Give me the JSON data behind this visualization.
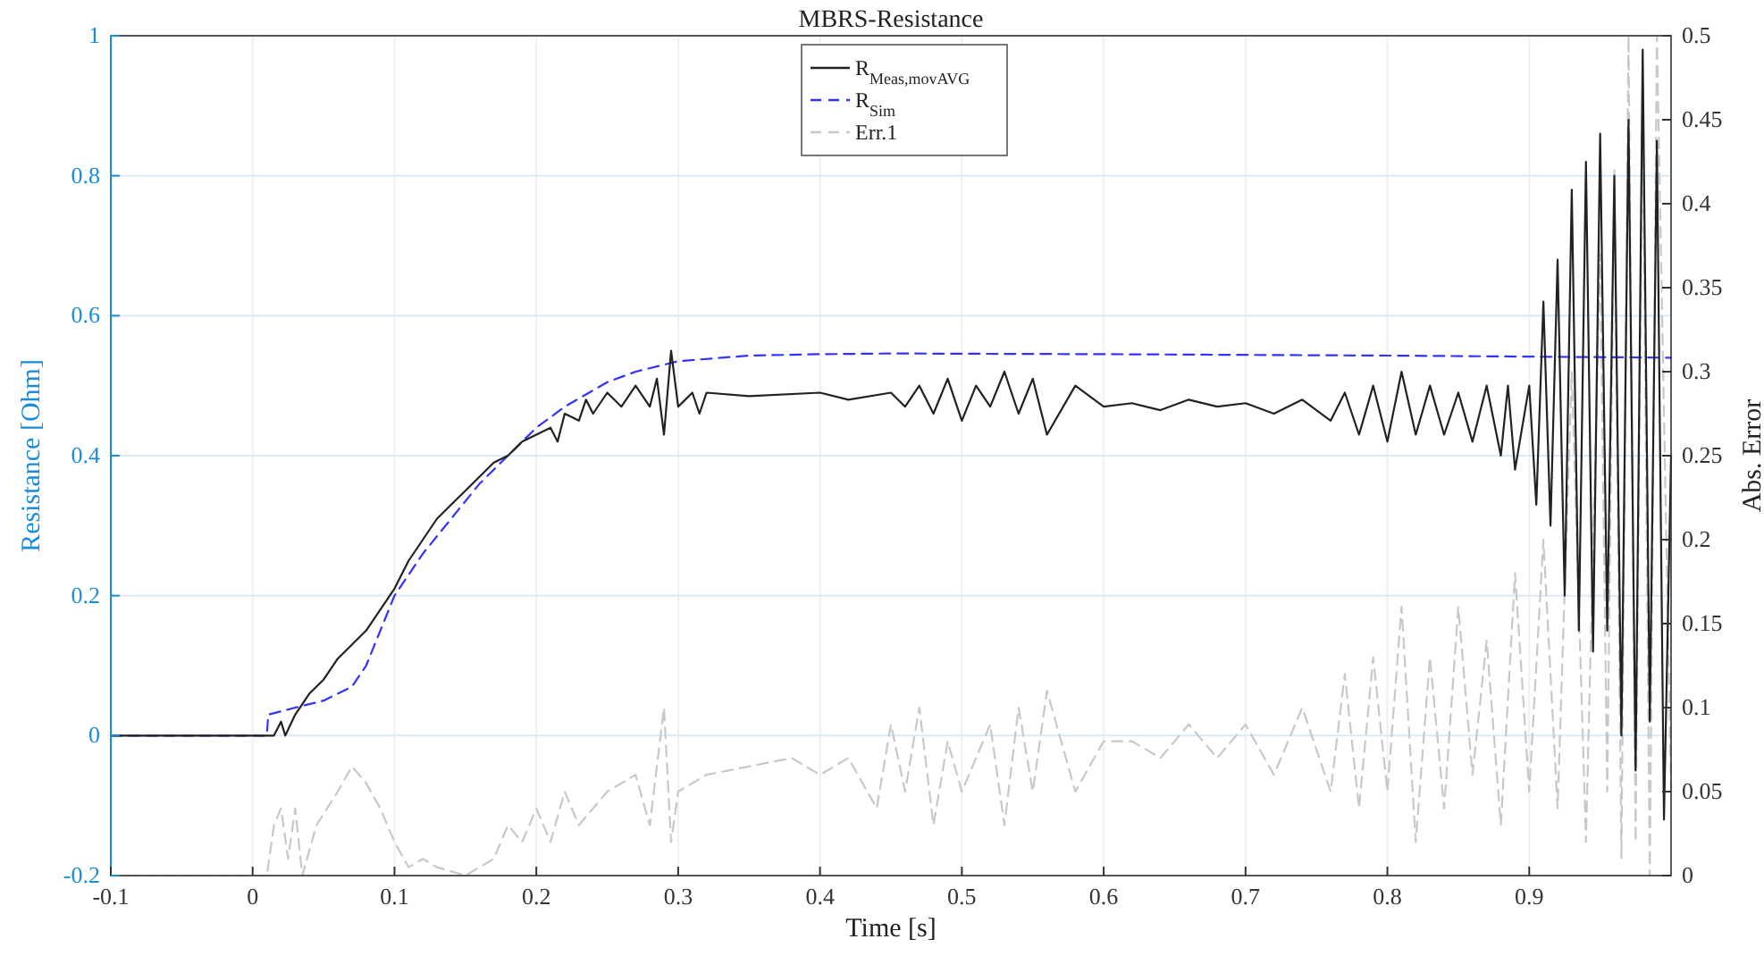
{
  "chart_data": {
    "type": "line",
    "title": "MBRS-Resistance",
    "xlabel": "Time [s]",
    "ylabel": "Resistance [Ohm]",
    "y2label": "Abs. Error",
    "xlim": [
      -0.1,
      1
    ],
    "xticks": [
      -0.1,
      0,
      0.1,
      0.2,
      0.3,
      0.4,
      0.5,
      0.6,
      0.7,
      0.8,
      0.9
    ],
    "ylim": [
      -0.2,
      1
    ],
    "yticks": [
      -0.2,
      0,
      0.2,
      0.4,
      0.6,
      0.8,
      1
    ],
    "y2lim": [
      0,
      0.5
    ],
    "y2ticks": [
      0,
      0.05,
      0.1,
      0.15,
      0.2,
      0.25,
      0.3,
      0.35,
      0.4,
      0.45,
      0.5
    ],
    "grid": true,
    "legend": "top",
    "series": [
      {
        "name": "R$_{Meas,movAVG}$",
        "color": "#222222",
        "line_style": "solid",
        "x": [
          -0.1,
          0.015,
          0.02,
          0.023,
          0.03,
          0.04,
          0.05,
          0.06,
          0.07,
          0.08,
          0.09,
          0.1,
          0.11,
          0.12,
          0.13,
          0.14,
          0.15,
          0.16,
          0.17,
          0.18,
          0.19,
          0.2,
          0.21,
          0.215,
          0.22,
          0.23,
          0.235,
          0.24,
          0.25,
          0.26,
          0.27,
          0.28,
          0.285,
          0.29,
          0.295,
          0.3,
          0.31,
          0.315,
          0.32,
          0.35,
          0.4,
          0.42,
          0.45,
          0.46,
          0.47,
          0.48,
          0.49,
          0.5,
          0.51,
          0.52,
          0.53,
          0.54,
          0.55,
          0.56,
          0.58,
          0.6,
          0.62,
          0.64,
          0.66,
          0.68,
          0.7,
          0.72,
          0.74,
          0.76,
          0.77,
          0.78,
          0.79,
          0.8,
          0.81,
          0.82,
          0.83,
          0.84,
          0.85,
          0.86,
          0.87,
          0.88,
          0.885,
          0.89,
          0.9,
          0.905,
          0.91,
          0.915,
          0.92,
          0.925,
          0.93,
          0.935,
          0.94,
          0.945,
          0.95,
          0.955,
          0.96,
          0.965,
          0.97,
          0.975,
          0.98,
          0.985,
          0.99,
          0.995,
          1
        ],
        "values": [
          0,
          0,
          0.02,
          0,
          0.03,
          0.06,
          0.08,
          0.11,
          0.13,
          0.15,
          0.18,
          0.21,
          0.25,
          0.28,
          0.31,
          0.33,
          0.35,
          0.37,
          0.39,
          0.4,
          0.42,
          0.43,
          0.44,
          0.42,
          0.46,
          0.45,
          0.48,
          0.46,
          0.49,
          0.47,
          0.5,
          0.47,
          0.51,
          0.43,
          0.55,
          0.47,
          0.49,
          0.46,
          0.49,
          0.485,
          0.49,
          0.48,
          0.49,
          0.47,
          0.5,
          0.46,
          0.51,
          0.45,
          0.5,
          0.47,
          0.52,
          0.46,
          0.51,
          0.43,
          0.5,
          0.47,
          0.475,
          0.465,
          0.48,
          0.47,
          0.475,
          0.46,
          0.48,
          0.45,
          0.49,
          0.43,
          0.5,
          0.42,
          0.52,
          0.43,
          0.5,
          0.43,
          0.49,
          0.42,
          0.5,
          0.4,
          0.5,
          0.38,
          0.5,
          0.33,
          0.62,
          0.3,
          0.68,
          0.2,
          0.78,
          0.15,
          0.82,
          0.12,
          0.86,
          0.15,
          0.8,
          0,
          0.88,
          -0.05,
          0.98,
          0.02,
          0.85,
          -0.12,
          0.4
        ]
      },
      {
        "name": "R$_{Sim}$",
        "color": "#3333ff",
        "line_style": "dashed",
        "x": [
          -0.1,
          0.01,
          0.011,
          0.03,
          0.05,
          0.07,
          0.08,
          0.09,
          0.1,
          0.12,
          0.14,
          0.16,
          0.18,
          0.2,
          0.22,
          0.25,
          0.27,
          0.3,
          0.35,
          0.4,
          0.45,
          0.6,
          0.8,
          1
        ],
        "values": [
          0,
          0,
          0.03,
          0.04,
          0.05,
          0.07,
          0.1,
          0.15,
          0.2,
          0.26,
          0.31,
          0.36,
          0.4,
          0.44,
          0.47,
          0.505,
          0.52,
          0.535,
          0.543,
          0.545,
          0.546,
          0.545,
          0.543,
          0.54
        ]
      },
      {
        "name": "Err.1",
        "color": "#c8c8c8",
        "line_style": "dashed",
        "axis": "y2",
        "x": [
          -0.1,
          0.01,
          0.015,
          0.02,
          0.025,
          0.03,
          0.035,
          0.045,
          0.06,
          0.07,
          0.08,
          0.09,
          0.1,
          0.11,
          0.12,
          0.13,
          0.15,
          0.17,
          0.18,
          0.19,
          0.2,
          0.21,
          0.22,
          0.23,
          0.25,
          0.27,
          0.28,
          0.29,
          0.295,
          0.3,
          0.32,
          0.35,
          0.38,
          0.4,
          0.42,
          0.44,
          0.45,
          0.46,
          0.47,
          0.48,
          0.49,
          0.5,
          0.52,
          0.53,
          0.54,
          0.55,
          0.56,
          0.58,
          0.6,
          0.62,
          0.64,
          0.66,
          0.68,
          0.7,
          0.72,
          0.74,
          0.76,
          0.77,
          0.78,
          0.79,
          0.8,
          0.81,
          0.82,
          0.83,
          0.84,
          0.85,
          0.86,
          0.87,
          0.88,
          0.89,
          0.9,
          0.91,
          0.92,
          0.93,
          0.94,
          0.95,
          0.955,
          0.96,
          0.965,
          0.97,
          0.975,
          0.98,
          0.985,
          0.99,
          1
        ],
        "values": [
          0,
          0,
          0.03,
          0.04,
          0.01,
          0.04,
          0,
          0.03,
          0.05,
          0.065,
          0.055,
          0.04,
          0.02,
          0.005,
          0.01,
          0.005,
          0,
          0.01,
          0.03,
          0.02,
          0.04,
          0.02,
          0.05,
          0.03,
          0.05,
          0.06,
          0.03,
          0.1,
          0.02,
          0.05,
          0.06,
          0.065,
          0.07,
          0.06,
          0.07,
          0.04,
          0.09,
          0.05,
          0.1,
          0.03,
          0.08,
          0.05,
          0.09,
          0.03,
          0.1,
          0.05,
          0.11,
          0.05,
          0.08,
          0.08,
          0.07,
          0.09,
          0.07,
          0.09,
          0.06,
          0.1,
          0.05,
          0.12,
          0.04,
          0.13,
          0.05,
          0.16,
          0.02,
          0.13,
          0.04,
          0.16,
          0.06,
          0.14,
          0.03,
          0.18,
          0.05,
          0.2,
          0.04,
          0.3,
          0.02,
          0.37,
          0.05,
          0.42,
          0.01,
          0.5,
          0.02,
          0.47,
          0,
          0.5,
          0.05
        ]
      }
    ]
  }
}
